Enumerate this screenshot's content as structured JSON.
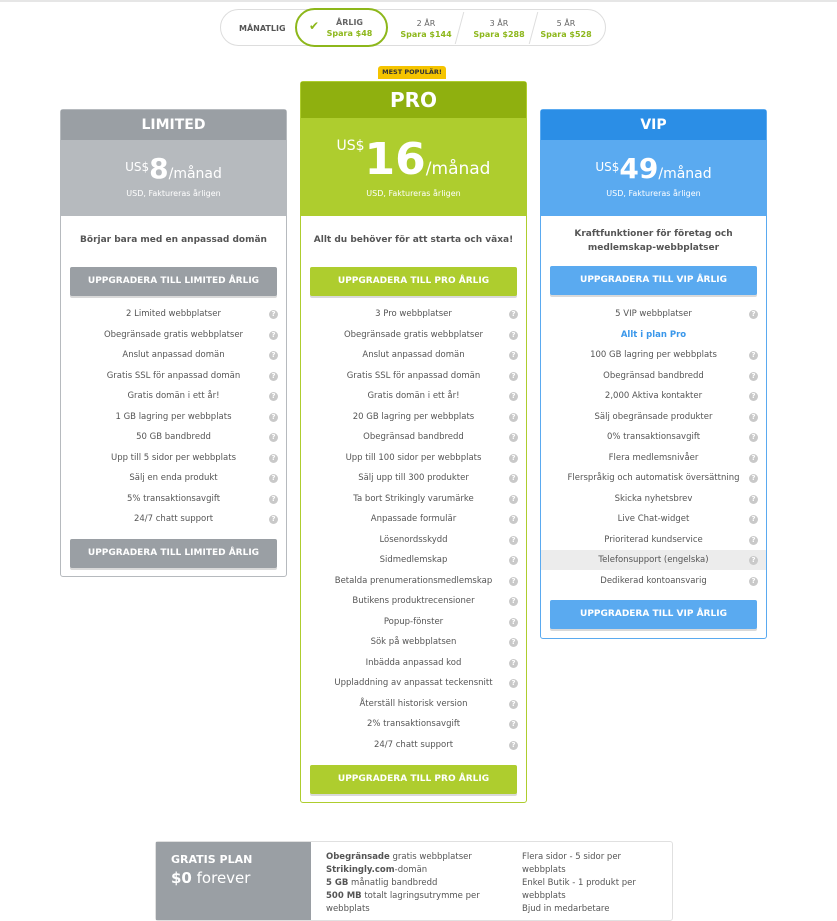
{
  "billing_toggle": {
    "options": [
      {
        "label": "MÅNATLIG"
      },
      {
        "label": "ÅRLIG",
        "save": "Spara $48",
        "selected": true
      },
      {
        "label": "2 ÅR",
        "save": "Spara $144"
      },
      {
        "label": "3 ÅR",
        "save": "Spara $288"
      },
      {
        "label": "5 ÅR",
        "save": "Spara $528"
      }
    ]
  },
  "badge": "MEST POPULÄR!",
  "colors": {
    "limited_header": "#9a9fa4",
    "limited_price": "#b6babe",
    "pro_header": "#8fb00f",
    "pro_price": "#aecd2e",
    "vip_header": "#2b8ee6",
    "vip_price": "#5aaaf0",
    "accent_green": "#8db71b"
  },
  "plans": [
    {
      "name": "LIMITED",
      "currency": "US$",
      "price": "8",
      "per": "/månad",
      "billing": "USD, Faktureras årligen",
      "description": "Börjar bara med en anpassad domän",
      "button": "UPPGRADERA TILL LIMITED ÅRLIG",
      "features": [
        "2 Limited webbplatser",
        "Obegränsade gratis webbplatser",
        "Anslut anpassad domän",
        "Gratis SSL för anpassad domän",
        "Gratis domän i ett år!",
        "1 GB lagring per webbplats",
        "50 GB bandbredd",
        "Upp till 5 sidor per webbplats",
        "Sälj en enda produkt",
        "5% transaktionsavgift",
        "24/7 chatt support"
      ]
    },
    {
      "name": "PRO",
      "currency": "US$",
      "price": "16",
      "per": "/månad",
      "billing": "USD, Faktureras årligen",
      "description": "Allt du behöver för att starta och växa!",
      "button": "UPPGRADERA TILL PRO ÅRLIG",
      "features": [
        "3 Pro webbplatser",
        "Obegränsade gratis webbplatser",
        "Anslut anpassad domän",
        "Gratis SSL för anpassad domän",
        "Gratis domän i ett år!",
        "20 GB lagring per webbplats",
        "Obegränsad bandbredd",
        "Upp till 100 sidor per webbplats",
        "Sälj upp till 300 produkter",
        "Ta bort Strikingly varumärke",
        "Anpassade formulär",
        "Lösenordsskydd",
        "Sidmedlemskap",
        "Betalda prenumerationsmedlemskap",
        "Butikens produktrecensioner",
        "Popup-fönster",
        "Sök på webbplatsen",
        "Inbädda anpassad kod",
        "Uppladdning av anpassat teckensnitt",
        "Återställ historisk version",
        "2% transaktionsavgift",
        "24/7 chatt support"
      ]
    },
    {
      "name": "VIP",
      "currency": "US$",
      "price": "49",
      "per": "/månad",
      "billing": "USD, Faktureras årligen",
      "description": "Kraftfunktioner för företag och medlemskap-webbplatser",
      "button": "UPPGRADERA TILL VIP ÅRLIG",
      "features": [
        "5 VIP webbplatser",
        "Allt i plan Pro",
        "100 GB lagring per webbplats",
        "Obegränsad bandbredd",
        "2,000 Aktiva kontakter",
        "Sälj obegränsade produkter",
        "0% transaktionsavgift",
        "Flera medlemsnivåer",
        "Flerspråkig och automatisk översättning",
        "Skicka nyhetsbrev",
        "Live Chat-widget",
        "Prioriterad kundservice",
        "Telefonsupport (engelska)",
        "Dedikerad kontoansvarig"
      ]
    }
  ],
  "free_plan": {
    "title": "GRATIS PLAN",
    "price": "$0",
    "price_suffix": " forever",
    "col1": [
      {
        "b": "Obegränsade",
        "t": " gratis webbplatser"
      },
      {
        "b": "Strikingly.com",
        "t": "-domän"
      },
      {
        "b": "5 GB",
        "t": " månatlig bandbredd"
      },
      {
        "b": "500 MB",
        "t": " totalt lagringsutrymme per webbplats"
      }
    ],
    "col2": [
      "Flera sidor - 5 sidor per webbplats",
      "Enkel Butik - 1 produkt per webbplats",
      "Bjud in medarbetare"
    ]
  }
}
